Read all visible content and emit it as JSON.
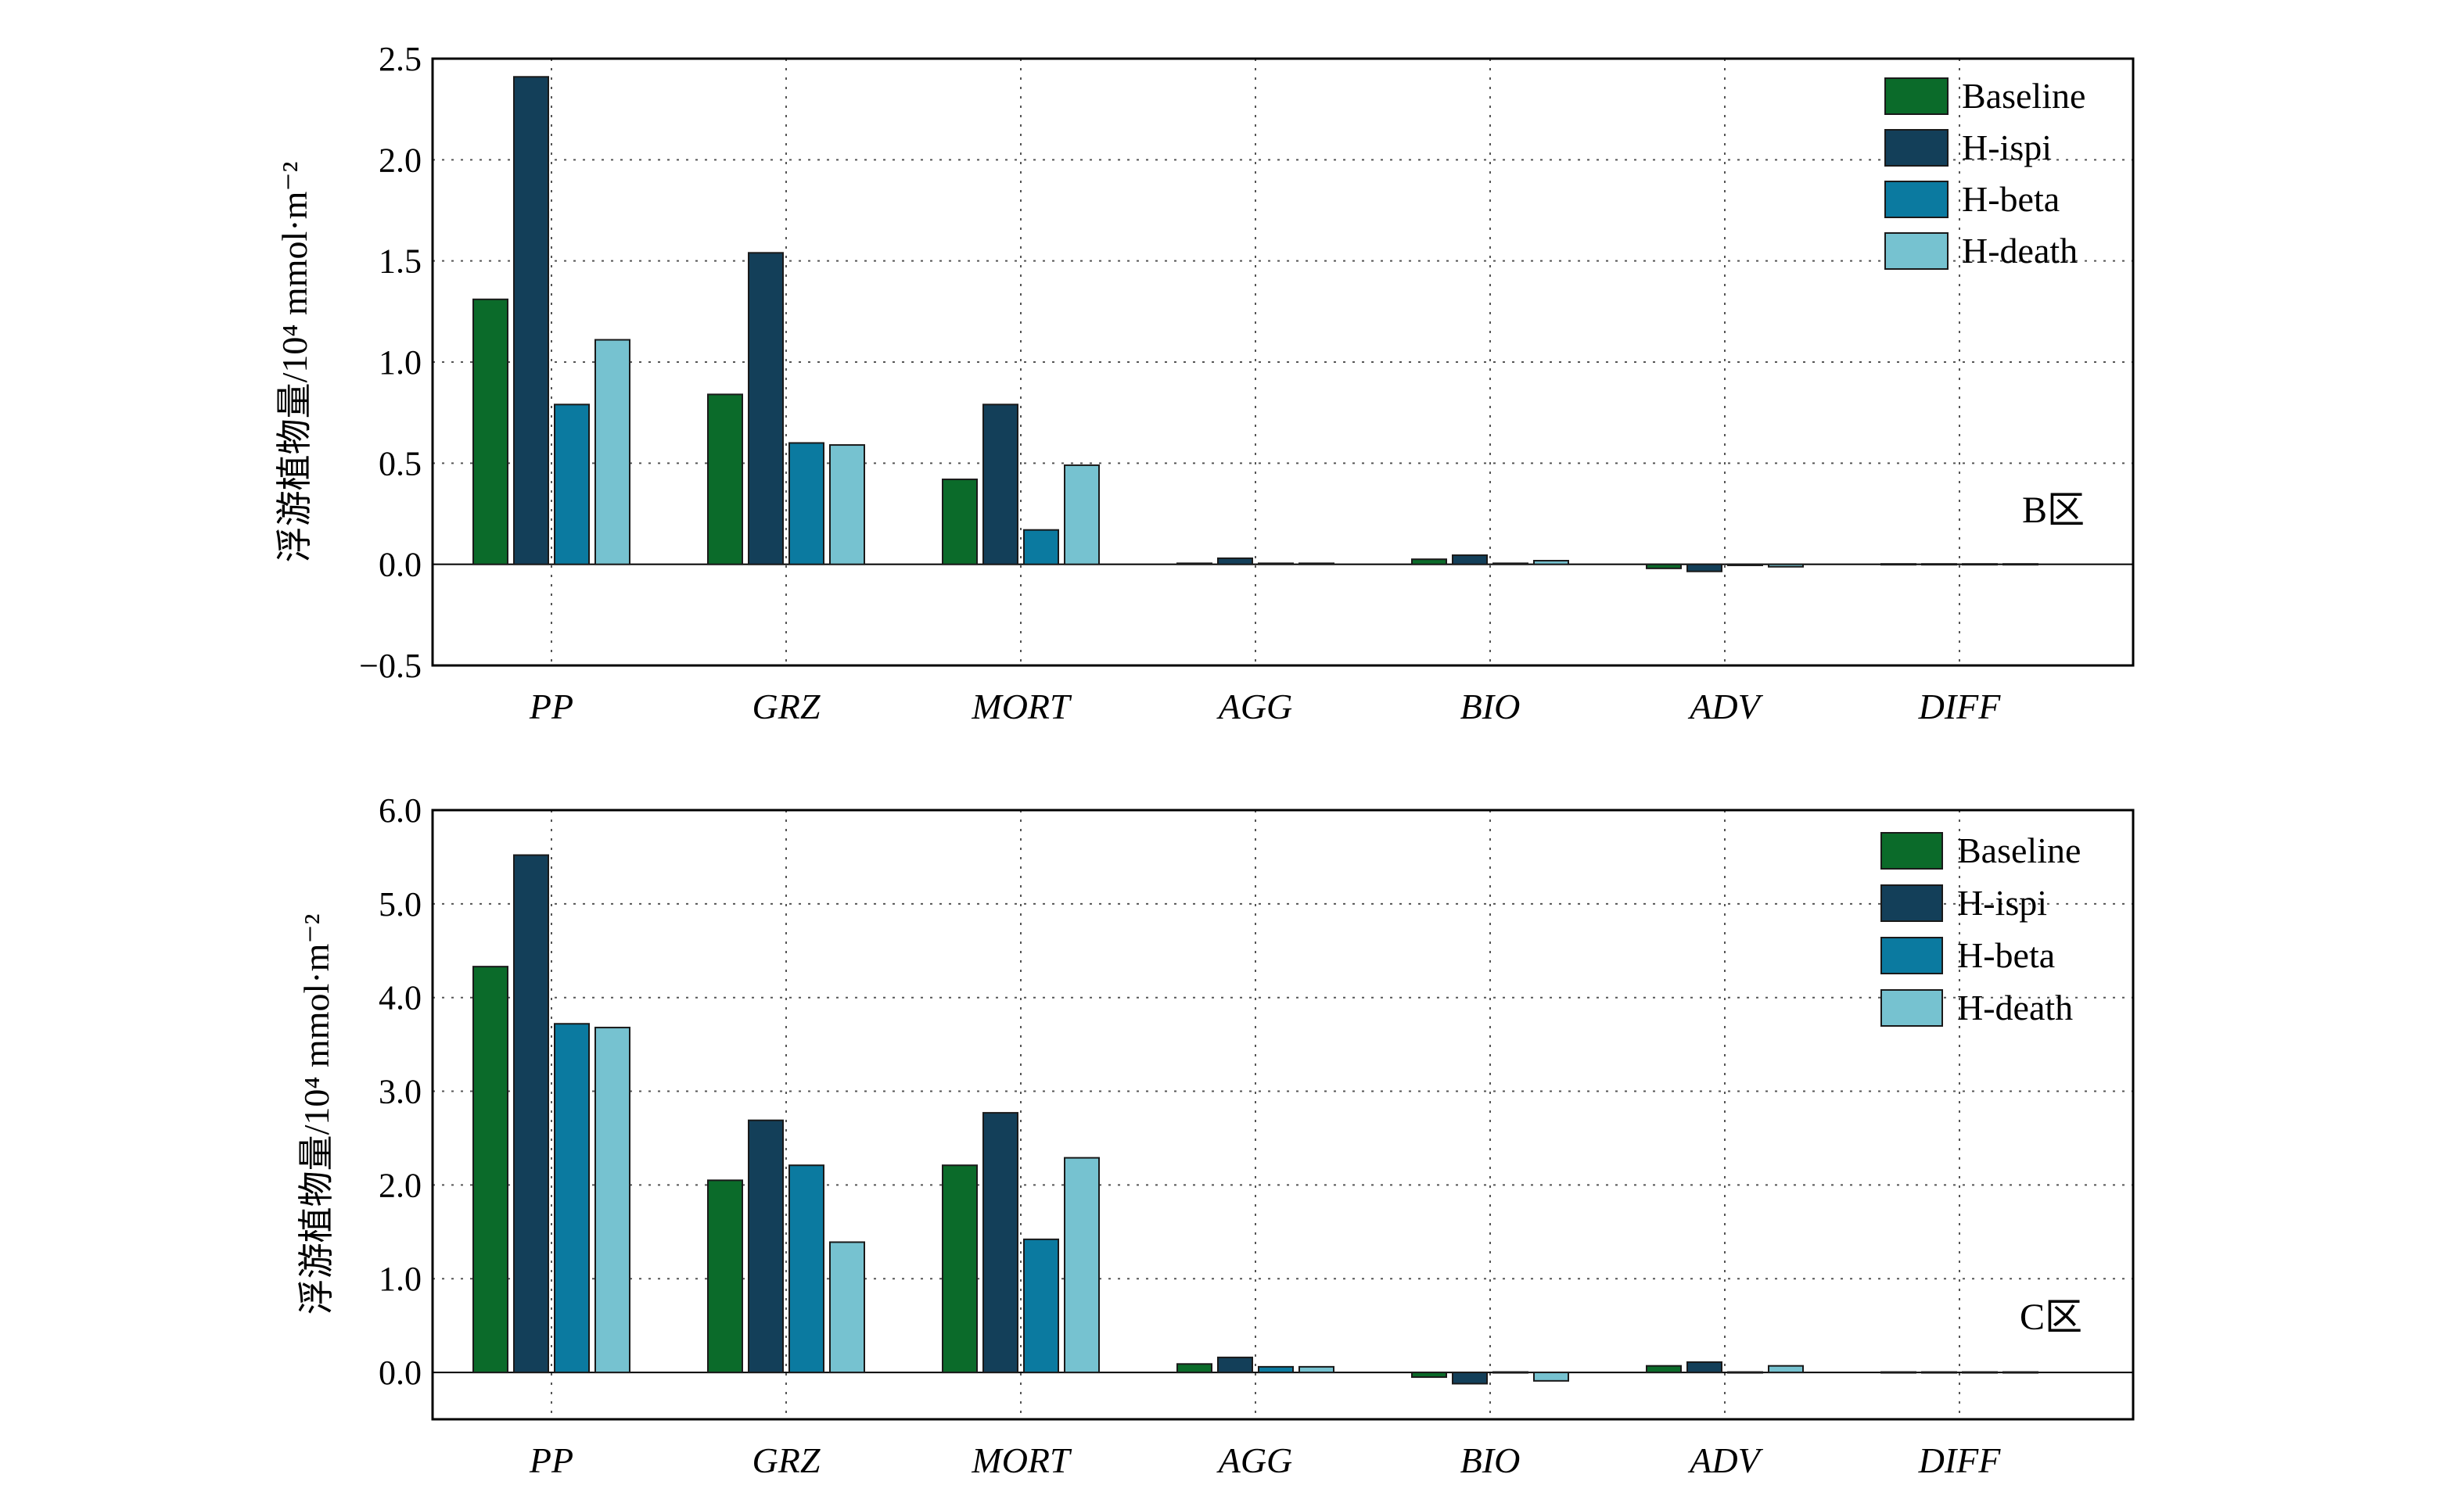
{
  "chart_data": [
    {
      "type": "bar",
      "categories": [
        "PP",
        "GRZ",
        "MORT",
        "AGG",
        "BIO",
        "ADV",
        "DIFF"
      ],
      "ylabel": "浮游植物量/10⁴ mmol·m⁻²",
      "ylim": [
        -0.5,
        2.5
      ],
      "yticks": [
        "−0.5",
        "0.0",
        "0.5",
        "1.0",
        "1.5",
        "2.0",
        "2.5"
      ],
      "grid": true,
      "legend_position": "top-right",
      "annotation": "B区",
      "series": [
        {
          "name": "Baseline",
          "color": "#0b6b2a",
          "values": [
            1.31,
            0.84,
            0.42,
            0.005,
            0.025,
            -0.02,
            0
          ]
        },
        {
          "name": "H-ispi",
          "color": "#133f59",
          "values": [
            2.41,
            1.54,
            0.79,
            0.03,
            0.045,
            -0.035,
            0
          ]
        },
        {
          "name": "H-beta",
          "color": "#0b7aa0",
          "values": [
            0.79,
            0.6,
            0.17,
            0.005,
            0.005,
            -0.005,
            0
          ]
        },
        {
          "name": "H-death",
          "color": "#76c2d0",
          "values": [
            1.11,
            0.59,
            0.49,
            0.005,
            0.018,
            -0.012,
            0
          ]
        }
      ]
    },
    {
      "type": "bar",
      "categories": [
        "PP",
        "GRZ",
        "MORT",
        "AGG",
        "BIO",
        "ADV",
        "DIFF"
      ],
      "ylabel": "浮游植物量/10⁴ mmol·m⁻²",
      "ylim": [
        -0.5,
        6.0
      ],
      "yticks": [
        "0.0",
        "1.0",
        "2.0",
        "3.0",
        "4.0",
        "5.0",
        "6.0"
      ],
      "grid": true,
      "legend_position": "top-right",
      "annotation": "C区",
      "series": [
        {
          "name": "Baseline",
          "color": "#0b6b2a",
          "values": [
            4.33,
            2.05,
            2.21,
            0.09,
            -0.05,
            0.07,
            0
          ]
        },
        {
          "name": "H-ispi",
          "color": "#133f59",
          "values": [
            5.52,
            2.69,
            2.77,
            0.16,
            -0.12,
            0.11,
            0
          ]
        },
        {
          "name": "H-beta",
          "color": "#0b7aa0",
          "values": [
            3.72,
            2.21,
            1.42,
            0.06,
            0.0,
            0.0,
            0
          ]
        },
        {
          "name": "H-death",
          "color": "#76c2d0",
          "values": [
            3.68,
            1.39,
            2.29,
            0.06,
            -0.09,
            0.07,
            0
          ]
        }
      ]
    }
  ]
}
